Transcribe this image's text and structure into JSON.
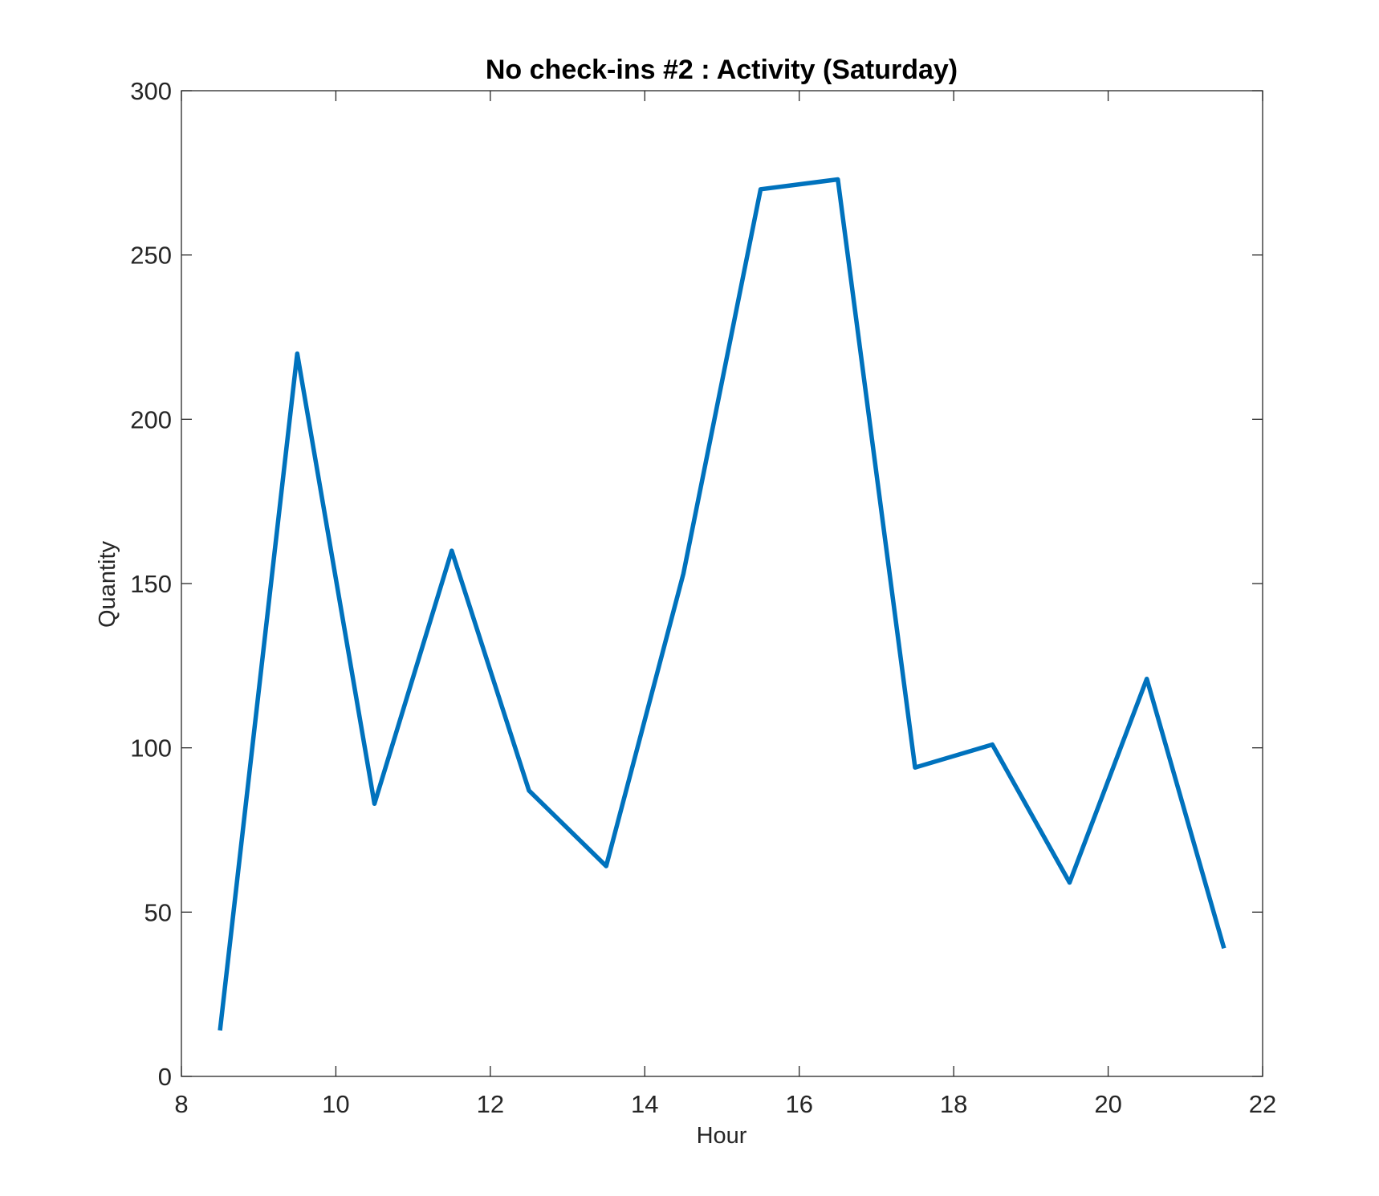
{
  "chart_data": {
    "type": "line",
    "title": "No check-ins #2 : Activity (Saturday)",
    "xlabel": "Hour",
    "ylabel": "Quantity",
    "xlim": [
      8,
      22
    ],
    "ylim": [
      0,
      300
    ],
    "xticks": [
      8,
      10,
      12,
      14,
      16,
      18,
      20,
      22
    ],
    "yticks": [
      0,
      50,
      100,
      150,
      200,
      250,
      300
    ],
    "grid": false,
    "series": [
      {
        "color": "#0072BD",
        "x": [
          8.5,
          9.5,
          10.5,
          11.5,
          12.5,
          13.5,
          14.5,
          15.5,
          16.5,
          17.5,
          18.5,
          19.5,
          20.5,
          21.5
        ],
        "y": [
          14,
          220,
          83,
          160,
          87,
          64,
          153,
          270,
          273,
          94,
          101,
          59,
          121,
          39
        ]
      }
    ]
  }
}
